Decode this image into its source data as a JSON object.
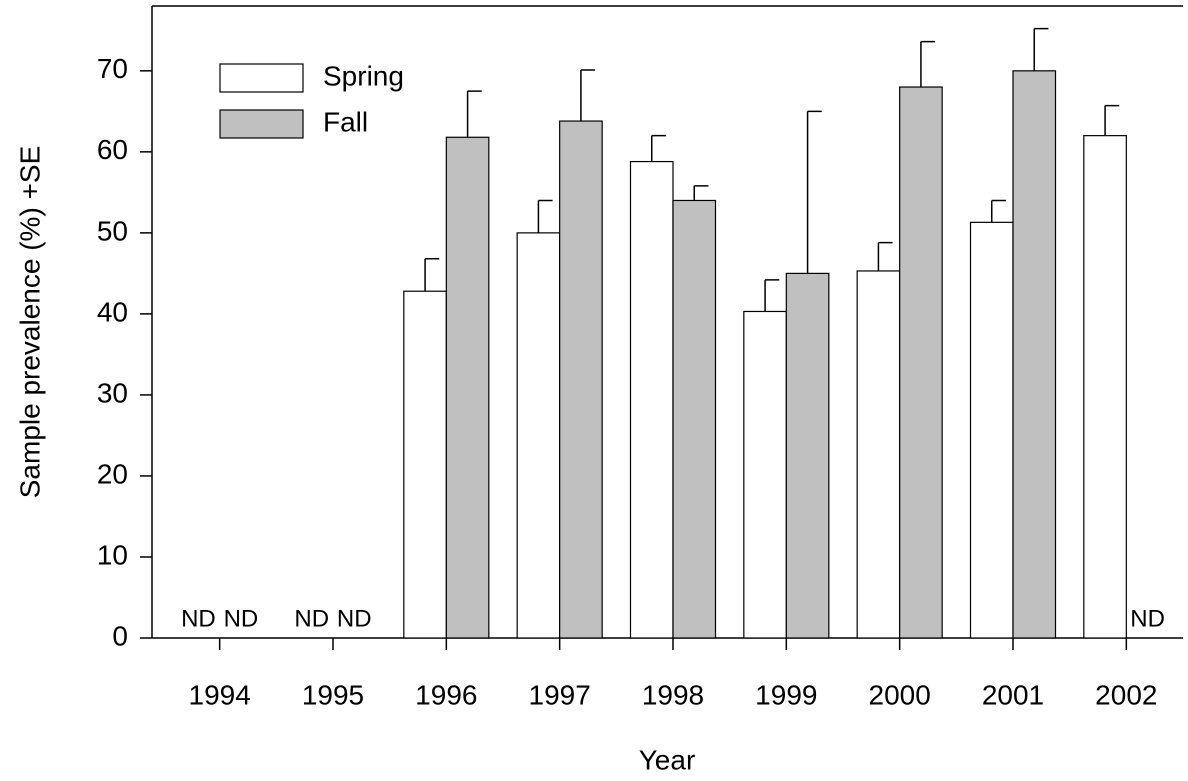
{
  "chart_data": {
    "type": "bar",
    "x_label": "Year",
    "y_label": "Sample prevalence (%) +SE",
    "categories": [
      "1994",
      "1995",
      "1996",
      "1997",
      "1998",
      "1999",
      "2000",
      "2001",
      "2002"
    ],
    "series": [
      {
        "name": "Spring",
        "color": "#ffffff",
        "values": [
          null,
          null,
          42.8,
          50,
          58.8,
          40.3,
          45.3,
          51.3,
          62
        ],
        "errors": [
          null,
          null,
          4.0,
          4.0,
          3.2,
          3.9,
          3.5,
          2.7,
          3.7
        ],
        "value_labels": [
          "ND",
          "ND",
          null,
          null,
          null,
          null,
          null,
          null,
          null
        ]
      },
      {
        "name": "Fall",
        "color": "#c0c0c0",
        "values": [
          null,
          null,
          61.8,
          63.8,
          54,
          45,
          68,
          70,
          null
        ],
        "errors": [
          null,
          null,
          5.7,
          6.3,
          1.8,
          20,
          5.6,
          5.2,
          null
        ],
        "value_labels": [
          "ND",
          "ND",
          null,
          null,
          null,
          null,
          null,
          null,
          "ND"
        ]
      }
    ],
    "ylim": [
      0,
      78
    ],
    "yticks": [
      0,
      10,
      20,
      30,
      40,
      50,
      60,
      70
    ],
    "legend": "upper left"
  }
}
